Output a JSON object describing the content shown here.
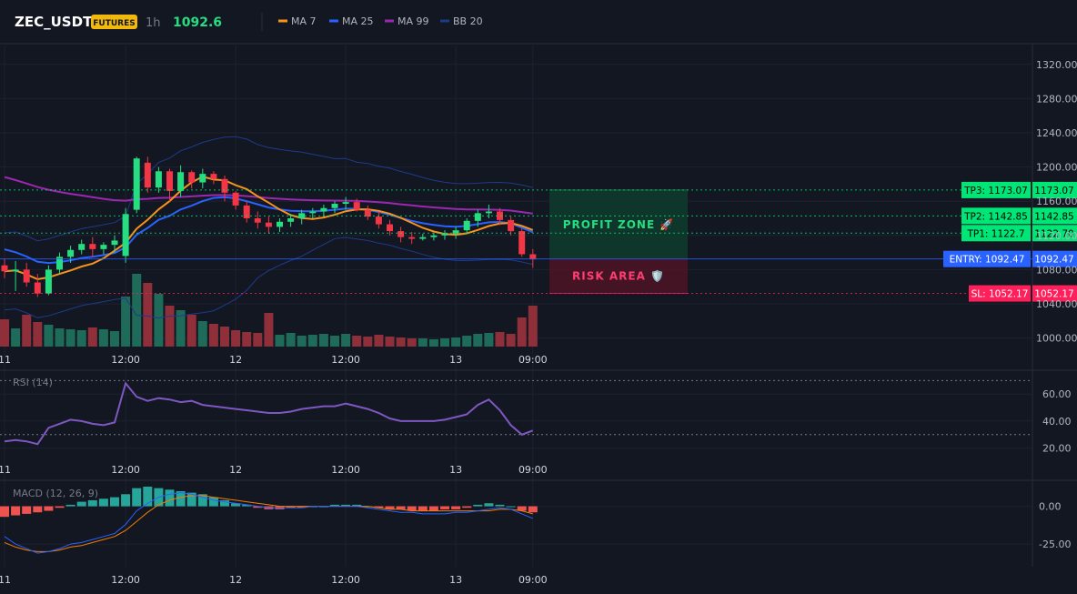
{
  "header": {
    "symbol": "ZEC_USDT",
    "badge": "FUTURES",
    "interval": "1h",
    "price": "1092.6",
    "legend": [
      {
        "label": "MA 7",
        "color": "#f7931a"
      },
      {
        "label": "MA 25",
        "color": "#2962ff"
      },
      {
        "label": "MA 99",
        "color": "#9c27b0"
      },
      {
        "label": "BB 20",
        "color": "#1e3a8a"
      }
    ]
  },
  "colors": {
    "bg": "#131722",
    "grid": "#1e2230",
    "up": "#26de81",
    "down": "#f23645",
    "volUp": "#1f6b5a",
    "volDown": "#8e2f3a",
    "ma7": "#f7931a",
    "ma25": "#2962ff",
    "ma99": "#9c27b0",
    "bb": "#1e3a8a",
    "tp": "#00e676",
    "entry": "#2962ff",
    "sl": "#ff1f5a",
    "rsi": "#7e57c2",
    "macd": "#2962ff",
    "signal": "#f57c00",
    "histUp": "#26a69a",
    "histDown": "#ef5350"
  },
  "xaxis": {
    "ticks": [
      {
        "i": 0,
        "label": "11"
      },
      {
        "i": 11,
        "label": "12:00"
      },
      {
        "i": 21,
        "label": "12"
      },
      {
        "i": 31,
        "label": "12:00"
      },
      {
        "i": 41,
        "label": "13"
      },
      {
        "i": 48,
        "label": "09:00"
      }
    ]
  },
  "chart_data": [
    {
      "type": "candlestick",
      "ylim": [
        990,
        1340
      ],
      "yticks": [
        {
          "value": 1000,
          "label": "1000.00"
        },
        {
          "value": 1040,
          "label": "1040.00"
        },
        {
          "value": 1080,
          "label": "1080.00"
        },
        {
          "value": 1120,
          "label": "1120.00"
        },
        {
          "value": 1160,
          "label": "1160.00"
        },
        {
          "value": 1200,
          "label": "1200.00"
        },
        {
          "value": 1240,
          "label": "1240.00"
        },
        {
          "value": 1280,
          "label": "1280.00"
        },
        {
          "value": 1320,
          "label": "1320.00"
        }
      ],
      "ohlc": [
        [
          1085,
          1093,
          1070,
          1078
        ],
        [
          1078,
          1090,
          1055,
          1080
        ],
        [
          1080,
          1088,
          1060,
          1065
        ],
        [
          1065,
          1075,
          1048,
          1052
        ],
        [
          1052,
          1085,
          1050,
          1080
        ],
        [
          1080,
          1100,
          1075,
          1095
        ],
        [
          1095,
          1108,
          1088,
          1103
        ],
        [
          1103,
          1115,
          1098,
          1110
        ],
        [
          1110,
          1118,
          1095,
          1104
        ],
        [
          1104,
          1112,
          1098,
          1109
        ],
        [
          1109,
          1120,
          1100,
          1114
        ],
        [
          1096,
          1152,
          1088,
          1145
        ],
        [
          1150,
          1212,
          1146,
          1210
        ],
        [
          1205,
          1212,
          1170,
          1176
        ],
        [
          1176,
          1200,
          1170,
          1195
        ],
        [
          1195,
          1198,
          1160,
          1172
        ],
        [
          1172,
          1202,
          1165,
          1194
        ],
        [
          1194,
          1196,
          1175,
          1182
        ],
        [
          1182,
          1198,
          1175,
          1192
        ],
        [
          1192,
          1195,
          1180,
          1186
        ],
        [
          1186,
          1190,
          1160,
          1170
        ],
        [
          1170,
          1172,
          1150,
          1155
        ],
        [
          1155,
          1160,
          1135,
          1140
        ],
        [
          1140,
          1148,
          1128,
          1135
        ],
        [
          1135,
          1142,
          1122,
          1130
        ],
        [
          1130,
          1140,
          1124,
          1136
        ],
        [
          1136,
          1145,
          1130,
          1140
        ],
        [
          1140,
          1150,
          1133,
          1146
        ],
        [
          1146,
          1152,
          1140,
          1148
        ],
        [
          1148,
          1156,
          1142,
          1152
        ],
        [
          1152,
          1160,
          1146,
          1157
        ],
        [
          1157,
          1165,
          1150,
          1159
        ],
        [
          1159,
          1163,
          1148,
          1150
        ],
        [
          1150,
          1155,
          1138,
          1142
        ],
        [
          1142,
          1148,
          1128,
          1133
        ],
        [
          1133,
          1138,
          1120,
          1125
        ],
        [
          1125,
          1130,
          1112,
          1118
        ],
        [
          1118,
          1124,
          1110,
          1116
        ],
        [
          1116,
          1122,
          1114,
          1118
        ],
        [
          1118,
          1123,
          1114,
          1120
        ],
        [
          1120,
          1126,
          1115,
          1122
        ],
        [
          1122,
          1130,
          1116,
          1126
        ],
        [
          1126,
          1140,
          1122,
          1137
        ],
        [
          1137,
          1150,
          1130,
          1146
        ],
        [
          1146,
          1156,
          1140,
          1148
        ],
        [
          1148,
          1152,
          1132,
          1138
        ],
        [
          1138,
          1142,
          1120,
          1125
        ],
        [
          1125,
          1128,
          1095,
          1098
        ],
        [
          1098,
          1104,
          1082,
          1092
        ]
      ],
      "bands": [
        {
          "name": "TP3",
          "value": 1173.07,
          "line_label": "TP3: 1173.07",
          "price_label": "1173.07",
          "color": "#00e676"
        },
        {
          "name": "TP2",
          "value": 1142.85,
          "line_label": "TP2: 1142.85",
          "price_label": "1142.85",
          "color": "#00e676"
        },
        {
          "name": "TP1",
          "value": 1122.7,
          "line_label": "TP1: 1122.7",
          "price_label": "1122.70",
          "color": "#00e676"
        },
        {
          "name": "ENTRY",
          "value": 1092.47,
          "line_label": "ENTRY: 1092.47",
          "price_label": "1092.47",
          "color": "#2962ff"
        },
        {
          "name": "SL",
          "value": 1052.17,
          "line_label": "SL: 1052.17",
          "price_label": "1052.17",
          "color": "#ff1f5a"
        }
      ],
      "profit_label": "PROFIT ZONE 🚀",
      "risk_label": "RISK AREA 🛡️"
    },
    {
      "type": "bar",
      "name": "volume",
      "values": [
        30,
        20,
        35,
        27,
        24,
        20,
        19,
        18,
        21,
        19,
        17,
        55,
        80,
        70,
        58,
        45,
        40,
        35,
        28,
        25,
        22,
        18,
        16,
        15,
        37,
        13,
        15,
        12,
        13,
        14,
        12,
        14,
        12,
        11,
        13,
        11,
        10,
        9,
        9,
        8,
        9,
        10,
        12,
        14,
        15,
        16,
        14,
        32,
        45
      ]
    },
    {
      "type": "line",
      "name": "RSI (14)",
      "ylim": [
        13,
        77
      ],
      "yticks": [
        {
          "value": 20,
          "label": "20.00"
        },
        {
          "value": 40,
          "label": "40.00"
        },
        {
          "value": 60,
          "label": "60.00"
        }
      ],
      "levels": [
        70,
        30
      ],
      "values": [
        25,
        26,
        25,
        23,
        35,
        38,
        41,
        40,
        38,
        37,
        39,
        68,
        58,
        55,
        57,
        56,
        54,
        55,
        52,
        51,
        50,
        49,
        48,
        47,
        46,
        46,
        47,
        49,
        50,
        51,
        51,
        53,
        51,
        49,
        46,
        42,
        40,
        40,
        40,
        40,
        41,
        43,
        45,
        52,
        56,
        48,
        37,
        30,
        33
      ]
    },
    {
      "type": "bar",
      "name": "MACD (12, 26, 9)",
      "ylim": [
        -40,
        16
      ],
      "yticks": [
        {
          "value": 0,
          "label": "0.00"
        },
        {
          "value": -25,
          "label": "-25.00"
        }
      ],
      "histogram": [
        -7,
        -6,
        -5,
        -4,
        -3,
        -1,
        1,
        3,
        4,
        5,
        6,
        8,
        12,
        13,
        12,
        11,
        10,
        9,
        8,
        6,
        4,
        2,
        1,
        -1,
        -2,
        -2,
        -1,
        -1,
        0,
        0,
        1,
        1,
        1,
        0,
        -1,
        -2,
        -2,
        -3,
        -3,
        -3,
        -2,
        -2,
        -1,
        1,
        2,
        1,
        0,
        -3,
        -4
      ],
      "macd": [
        -20,
        -25,
        -28,
        -31,
        -30,
        -28,
        -25,
        -24,
        -22,
        -20,
        -18,
        -12,
        -3,
        2,
        6,
        8,
        9,
        8,
        6,
        4,
        3,
        2,
        1,
        0,
        -1,
        -1,
        -1,
        -1,
        0,
        0,
        0,
        0,
        0,
        -1,
        -2,
        -3,
        -4,
        -4,
        -5,
        -5,
        -5,
        -4,
        -4,
        -3,
        -2,
        -1,
        -2,
        -5,
        -8
      ],
      "signal": [
        -24,
        -27,
        -29,
        -30,
        -30,
        -29,
        -27,
        -26,
        -24,
        -22,
        -20,
        -16,
        -10,
        -4,
        1,
        4,
        6,
        7,
        7,
        6,
        5,
        4,
        3,
        2,
        1,
        0,
        0,
        0,
        0,
        0,
        0,
        0,
        0,
        0,
        -1,
        -2,
        -2,
        -3,
        -3,
        -3,
        -3,
        -3,
        -3,
        -3,
        -3,
        -2,
        -2,
        -3,
        -5
      ]
    }
  ]
}
